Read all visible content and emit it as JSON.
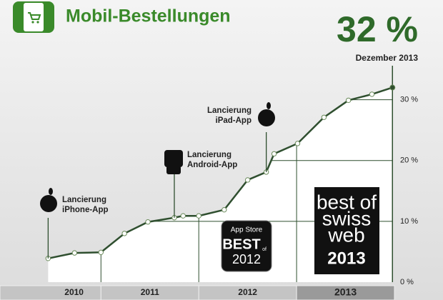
{
  "chart_data": {
    "type": "line",
    "title": "Mobil-Bestellungen",
    "headline_value_label": "32 %",
    "subtitle": "Dezember 2013",
    "x": [
      2010.46,
      2010.73,
      2011.0,
      2011.24,
      2011.48,
      2011.75,
      2011.84,
      2012.0,
      2012.26,
      2012.5,
      2012.69,
      2012.77,
      2013.01,
      2013.28,
      2013.53,
      2013.77,
      2013.98
    ],
    "series": [
      {
        "name": "Mobil-Bestellungen",
        "color": "#2f4f2f",
        "values": [
          3.9,
          4.8,
          4.9,
          8.0,
          9.9,
          10.6,
          10.9,
          10.9,
          11.9,
          16.8,
          18.1,
          21.1,
          22.8,
          27.1,
          29.9,
          30.9,
          32
        ]
      }
    ],
    "xlim": [
      2010.45,
      2014
    ],
    "year_boundaries": [
      2011,
      2012,
      2013
    ],
    "year_labels": [
      "2010",
      "2011",
      "2012",
      "2013"
    ],
    "ylim": [
      0,
      35
    ],
    "yticks": [
      {
        "value": 0,
        "label": "0 %"
      },
      {
        "value": 10,
        "label": "10 %"
      },
      {
        "value": 20,
        "label": "20 %"
      },
      {
        "value": 30,
        "label": "30 %"
      }
    ],
    "grid": true,
    "annotations": [
      [
        "Lancierung",
        "iPhone-App"
      ],
      [
        "Lancierung",
        "Android-App"
      ],
      [
        "Lancierung",
        "iPad-App"
      ]
    ],
    "badges": [
      [
        "App Store",
        "BEST",
        "of",
        "2012"
      ],
      [
        "best of",
        "swiss",
        "web",
        "2013"
      ]
    ]
  }
}
